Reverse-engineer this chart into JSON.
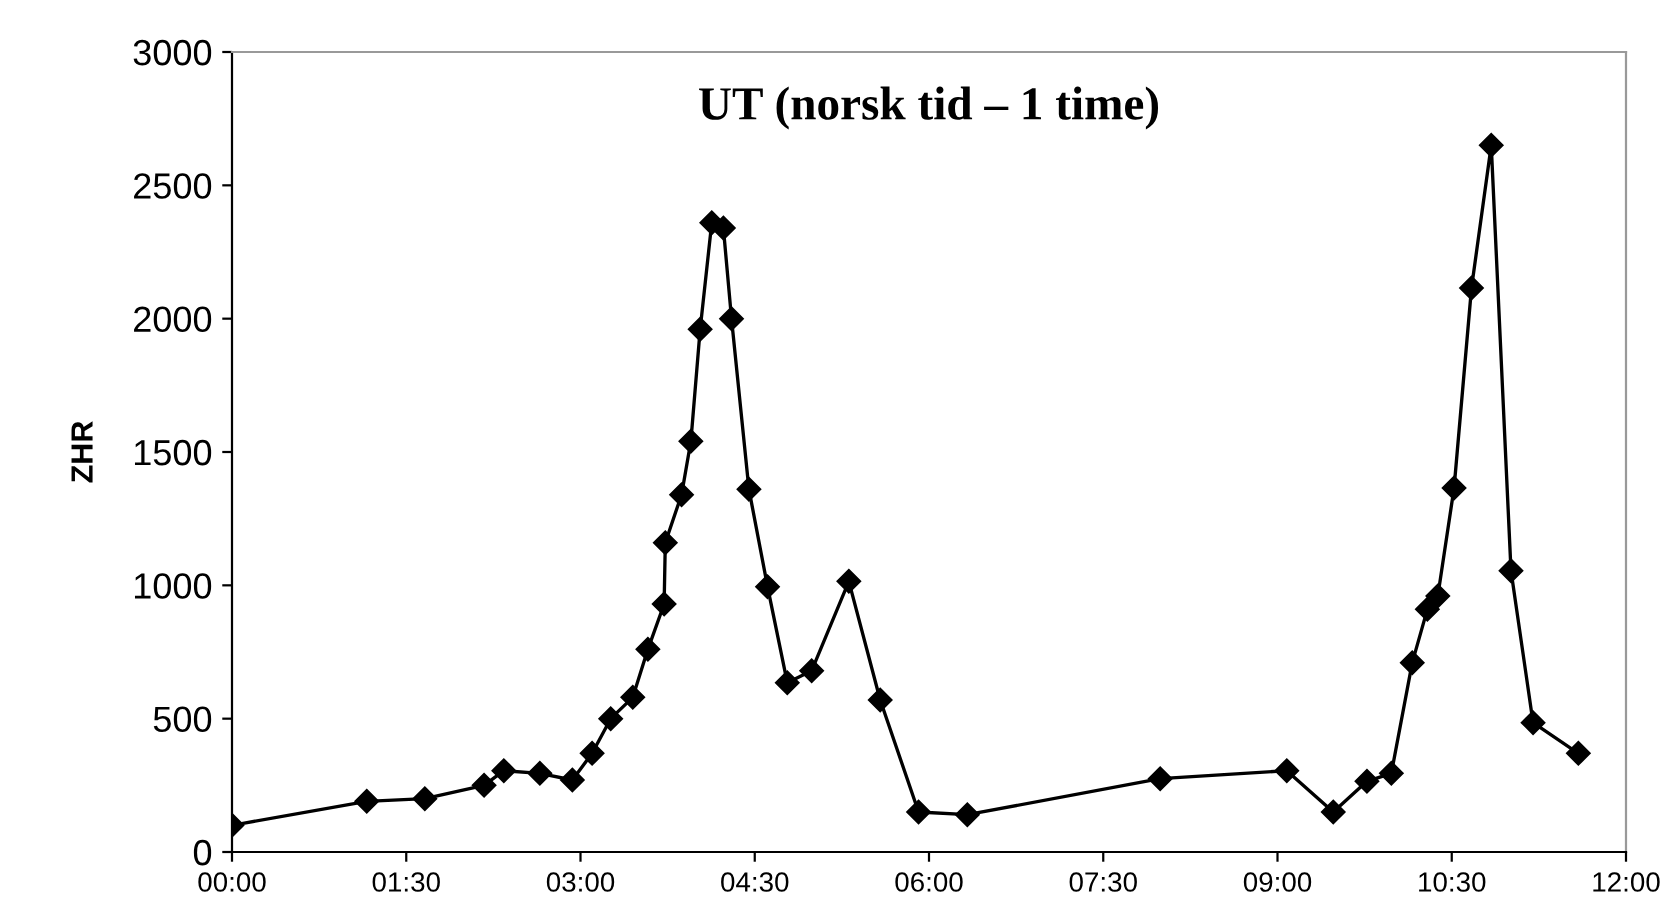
{
  "chart_data": {
    "type": "line",
    "title": "UT (norsk tid – 1 time)",
    "ylabel": "ZHR",
    "x": [
      0,
      1.16,
      1.66,
      2.17,
      2.34,
      2.65,
      2.93,
      3.1,
      3.26,
      3.45,
      3.58,
      3.72,
      3.73,
      3.87,
      3.95,
      4.03,
      4.13,
      4.23,
      4.3,
      4.45,
      4.61,
      4.78,
      4.99,
      5.31,
      5.58,
      5.91,
      6.33,
      7.99,
      9.08,
      9.48,
      9.77,
      9.98,
      10.16,
      10.29,
      10.38,
      10.52,
      10.67,
      10.84,
      11.01,
      11.2,
      11.59
    ],
    "series": [
      {
        "color": "#000000",
        "values": [
          100,
          190,
          200,
          250,
          305,
          295,
          270,
          370,
          500,
          580,
          760,
          930,
          1160,
          1340,
          1540,
          1960,
          2360,
          2340,
          2000,
          1360,
          995,
          635,
          680,
          1015,
          570,
          150,
          140,
          275,
          305,
          150,
          265,
          295,
          710,
          910,
          960,
          1365,
          2115,
          2650,
          1055,
          485,
          370
        ]
      }
    ],
    "xlim": [
      0,
      12
    ],
    "ylim": [
      0,
      3000
    ],
    "xticks": [
      {
        "value": 0,
        "label": "00:00"
      },
      {
        "value": 1.5,
        "label": "01:30"
      },
      {
        "value": 3,
        "label": "03:00"
      },
      {
        "value": 4.5,
        "label": "04:30"
      },
      {
        "value": 6,
        "label": "06:00"
      },
      {
        "value": 7.5,
        "label": "07:30"
      },
      {
        "value": 9,
        "label": "09:00"
      },
      {
        "value": 10.5,
        "label": "10:30"
      },
      {
        "value": 12,
        "label": "12:00"
      }
    ],
    "yticks": [
      0,
      500,
      1000,
      1500,
      2000,
      2500,
      3000
    ],
    "marker": "diamond",
    "line_style": "solid",
    "grid": false,
    "legend": false
  }
}
